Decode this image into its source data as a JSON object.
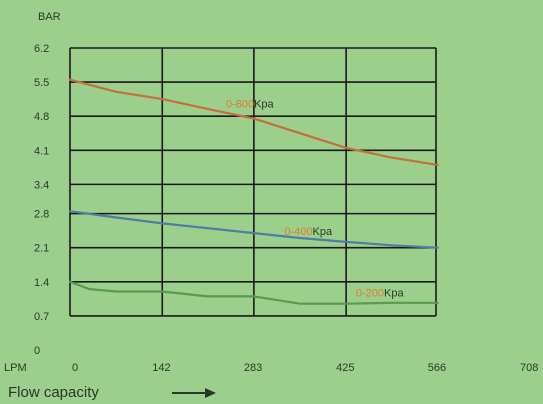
{
  "chart_data": {
    "type": "line",
    "y_unit": "BAR",
    "x_unit": "LPM",
    "xlabel": "Flow capacity",
    "x_ticks": [
      0,
      142,
      283,
      425,
      566,
      708
    ],
    "y_ticks": [
      0,
      0.7,
      1.4,
      2.1,
      2.8,
      3.4,
      4.1,
      4.8,
      5.5,
      6.2
    ],
    "xlim": [
      0,
      708
    ],
    "ylim": [
      0,
      6.2
    ],
    "grid": true,
    "colors": {
      "background": "#9dcf8c",
      "grid": "#1a1a1a",
      "series_0_800": "#c4703a",
      "series_0_400": "#4b7ea4",
      "series_0_200": "#5a9a4c",
      "label_prefix": "#e07a2c",
      "label_suffix": "#2c3a2a"
    },
    "series": [
      {
        "name": "0-800Kpa",
        "label_prefix": "0-800",
        "label_suffix": "Kpa",
        "color": "#c4703a",
        "x": [
          0,
          71,
          142,
          212,
          283,
          354,
          425,
          495,
          566
        ],
        "y": [
          5.55,
          5.3,
          5.15,
          4.95,
          4.75,
          4.45,
          4.15,
          3.95,
          3.8
        ]
      },
      {
        "name": "0-400Kpa",
        "label_prefix": "0-400",
        "label_suffix": "Kpa",
        "color": "#4b7ea4",
        "x": [
          0,
          71,
          142,
          212,
          283,
          354,
          425,
          495,
          566
        ],
        "y": [
          2.85,
          2.72,
          2.6,
          2.5,
          2.4,
          2.3,
          2.22,
          2.15,
          2.1
        ]
      },
      {
        "name": "0-200Kpa",
        "label_prefix": "0-200",
        "label_suffix": "Kpa",
        "color": "#5a9a4c",
        "x": [
          0,
          30,
          71,
          142,
          212,
          283,
          354,
          425,
          495,
          566
        ],
        "y": [
          1.4,
          1.25,
          1.2,
          1.2,
          1.1,
          1.1,
          0.95,
          0.95,
          0.97,
          0.97
        ]
      }
    ]
  }
}
